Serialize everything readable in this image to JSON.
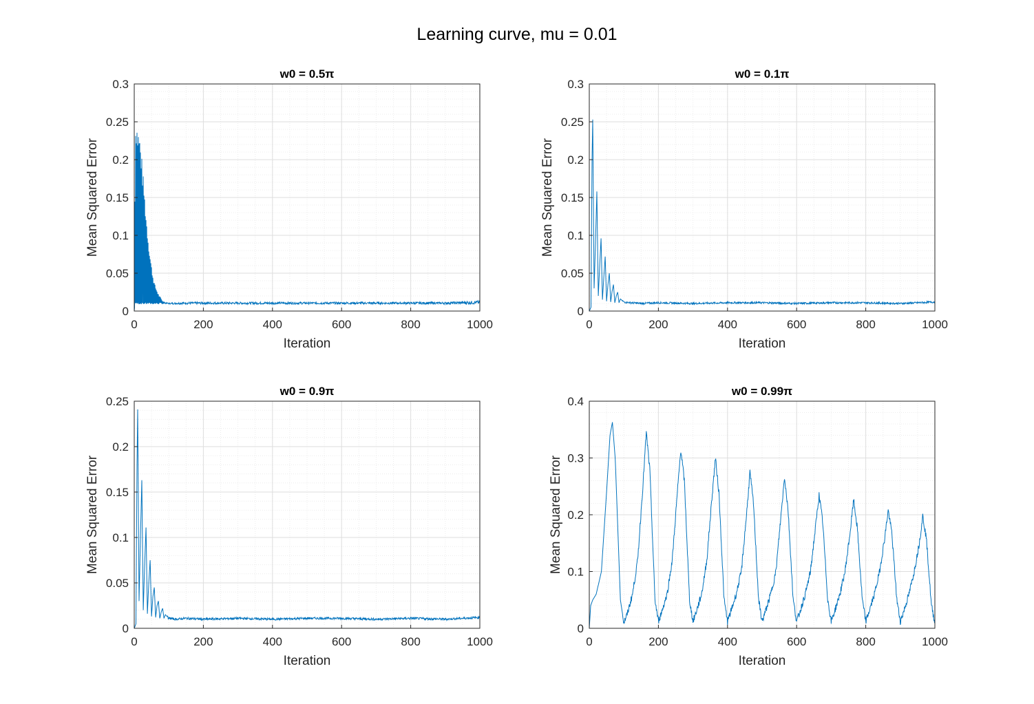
{
  "figure": {
    "title": "Learning curve, mu = 0.01"
  },
  "colors": {
    "line": "#0072BD",
    "grid_major": "#dedede",
    "grid_minor": "#ececec",
    "axis": "#262626"
  },
  "chart_data": [
    {
      "type": "line",
      "title": "w0 = 0.5π",
      "xlabel": "Iteration",
      "ylabel": "Mean Squared Error",
      "xlim": [
        0,
        1000
      ],
      "ylim": [
        0,
        0.3
      ],
      "xticks": [
        0,
        200,
        400,
        600,
        800,
        1000
      ],
      "yticks": [
        0,
        0.05,
        0.1,
        0.15,
        0.2,
        0.25,
        0.3
      ],
      "grid": "on",
      "series": [
        {
          "x": [
            0,
            3,
            6,
            10,
            15,
            20,
            25,
            30,
            35,
            40,
            45,
            50,
            55,
            60,
            70,
            80,
            90,
            100,
            150,
            200,
            300,
            400,
            500,
            600,
            700,
            800,
            900,
            1000
          ],
          "upper": [
            0.0,
            0.25,
            0.257,
            0.245,
            0.238,
            0.215,
            0.185,
            0.155,
            0.125,
            0.1,
            0.078,
            0.06,
            0.045,
            0.035,
            0.023,
            0.015,
            0.012,
            0.011,
            0.012,
            0.012,
            0.012,
            0.012,
            0.012,
            0.012,
            0.012,
            0.012,
            0.012,
            0.014
          ],
          "lower": [
            0.0,
            0.01,
            0.009,
            0.009,
            0.009,
            0.009,
            0.009,
            0.009,
            0.009,
            0.009,
            0.009,
            0.009,
            0.009,
            0.009,
            0.009,
            0.009,
            0.009,
            0.009,
            0.009,
            0.009,
            0.009,
            0.009,
            0.009,
            0.009,
            0.009,
            0.009,
            0.009,
            0.009
          ]
        }
      ]
    },
    {
      "type": "line",
      "title": "w0 = 0.1π",
      "xlabel": "Iteration",
      "ylabel": "Mean Squared Error",
      "xlim": [
        0,
        1000
      ],
      "ylim": [
        0,
        0.3
      ],
      "xticks": [
        0,
        200,
        400,
        600,
        800,
        1000
      ],
      "yticks": [
        0,
        0.05,
        0.1,
        0.15,
        0.2,
        0.25,
        0.3
      ],
      "grid": "on",
      "series": [
        {
          "x": [
            0,
            5,
            8,
            10,
            14,
            18,
            22,
            26,
            30,
            34,
            38,
            42,
            46,
            50,
            54,
            58,
            62,
            66,
            70,
            74,
            78,
            82,
            86,
            90,
            100,
            120,
            150,
            200,
            300,
            400,
            500,
            600,
            700,
            800,
            900,
            1000
          ],
          "y": [
            0.0,
            0.005,
            0.2,
            0.253,
            0.03,
            0.09,
            0.158,
            0.02,
            0.06,
            0.096,
            0.015,
            0.045,
            0.072,
            0.013,
            0.035,
            0.05,
            0.012,
            0.026,
            0.035,
            0.011,
            0.02,
            0.025,
            0.011,
            0.016,
            0.012,
            0.011,
            0.01,
            0.011,
            0.01,
            0.011,
            0.011,
            0.01,
            0.011,
            0.011,
            0.01,
            0.012
          ]
        }
      ]
    },
    {
      "type": "line",
      "title": "w0 = 0.9π",
      "xlabel": "Iteration",
      "ylabel": "Mean Squared Error",
      "xlim": [
        0,
        1000
      ],
      "ylim": [
        0,
        0.25
      ],
      "xticks": [
        0,
        200,
        400,
        600,
        800,
        1000
      ],
      "yticks": [
        0,
        0.05,
        0.1,
        0.15,
        0.2,
        0.25
      ],
      "grid": "on",
      "series": [
        {
          "x": [
            0,
            5,
            8,
            10,
            14,
            18,
            22,
            26,
            30,
            34,
            38,
            42,
            46,
            50,
            54,
            58,
            62,
            66,
            70,
            74,
            78,
            82,
            86,
            90,
            100,
            120,
            150,
            200,
            300,
            400,
            500,
            600,
            700,
            800,
            900,
            1000
          ],
          "y": [
            0.0,
            0.005,
            0.18,
            0.241,
            0.03,
            0.1,
            0.163,
            0.02,
            0.07,
            0.111,
            0.016,
            0.05,
            0.075,
            0.013,
            0.035,
            0.045,
            0.012,
            0.025,
            0.03,
            0.011,
            0.018,
            0.022,
            0.011,
            0.015,
            0.011,
            0.01,
            0.011,
            0.01,
            0.011,
            0.01,
            0.011,
            0.011,
            0.01,
            0.011,
            0.01,
            0.012
          ]
        }
      ]
    },
    {
      "type": "line",
      "title": "w0 = 0.99π",
      "xlabel": "Iteration",
      "ylabel": "Mean Squared Error",
      "xlim": [
        0,
        1000
      ],
      "ylim": [
        0,
        0.4
      ],
      "xticks": [
        0,
        200,
        400,
        600,
        800,
        1000
      ],
      "yticks": [
        0,
        0.1,
        0.2,
        0.3,
        0.4
      ],
      "grid": "on",
      "series": [
        {
          "x": [
            0,
            4,
            10,
            20,
            35,
            50,
            60,
            67,
            75,
            90,
            100,
            110,
            125,
            140,
            155,
            165,
            175,
            190,
            200,
            210,
            225,
            240,
            255,
            265,
            275,
            290,
            300,
            310,
            325,
            340,
            355,
            365,
            375,
            390,
            400,
            410,
            425,
            440,
            455,
            465,
            475,
            490,
            500,
            510,
            525,
            540,
            555,
            565,
            575,
            590,
            600,
            610,
            625,
            640,
            655,
            665,
            675,
            690,
            700,
            710,
            725,
            740,
            755,
            765,
            775,
            790,
            800,
            810,
            825,
            840,
            855,
            865,
            875,
            890,
            900,
            910,
            925,
            940,
            955,
            965,
            975,
            990,
            1000
          ],
          "y": [
            0.0,
            0.04,
            0.05,
            0.06,
            0.1,
            0.24,
            0.34,
            0.363,
            0.3,
            0.05,
            0.01,
            0.025,
            0.06,
            0.12,
            0.25,
            0.345,
            0.28,
            0.05,
            0.012,
            0.03,
            0.06,
            0.12,
            0.24,
            0.315,
            0.26,
            0.05,
            0.012,
            0.03,
            0.06,
            0.12,
            0.23,
            0.3,
            0.24,
            0.05,
            0.012,
            0.03,
            0.06,
            0.1,
            0.2,
            0.275,
            0.22,
            0.05,
            0.012,
            0.03,
            0.06,
            0.1,
            0.2,
            0.267,
            0.21,
            0.05,
            0.012,
            0.03,
            0.06,
            0.1,
            0.18,
            0.235,
            0.19,
            0.05,
            0.012,
            0.03,
            0.06,
            0.1,
            0.17,
            0.226,
            0.18,
            0.05,
            0.012,
            0.03,
            0.06,
            0.1,
            0.16,
            0.208,
            0.17,
            0.05,
            0.012,
            0.03,
            0.06,
            0.1,
            0.15,
            0.198,
            0.16,
            0.04,
            0.01
          ]
        }
      ]
    }
  ]
}
